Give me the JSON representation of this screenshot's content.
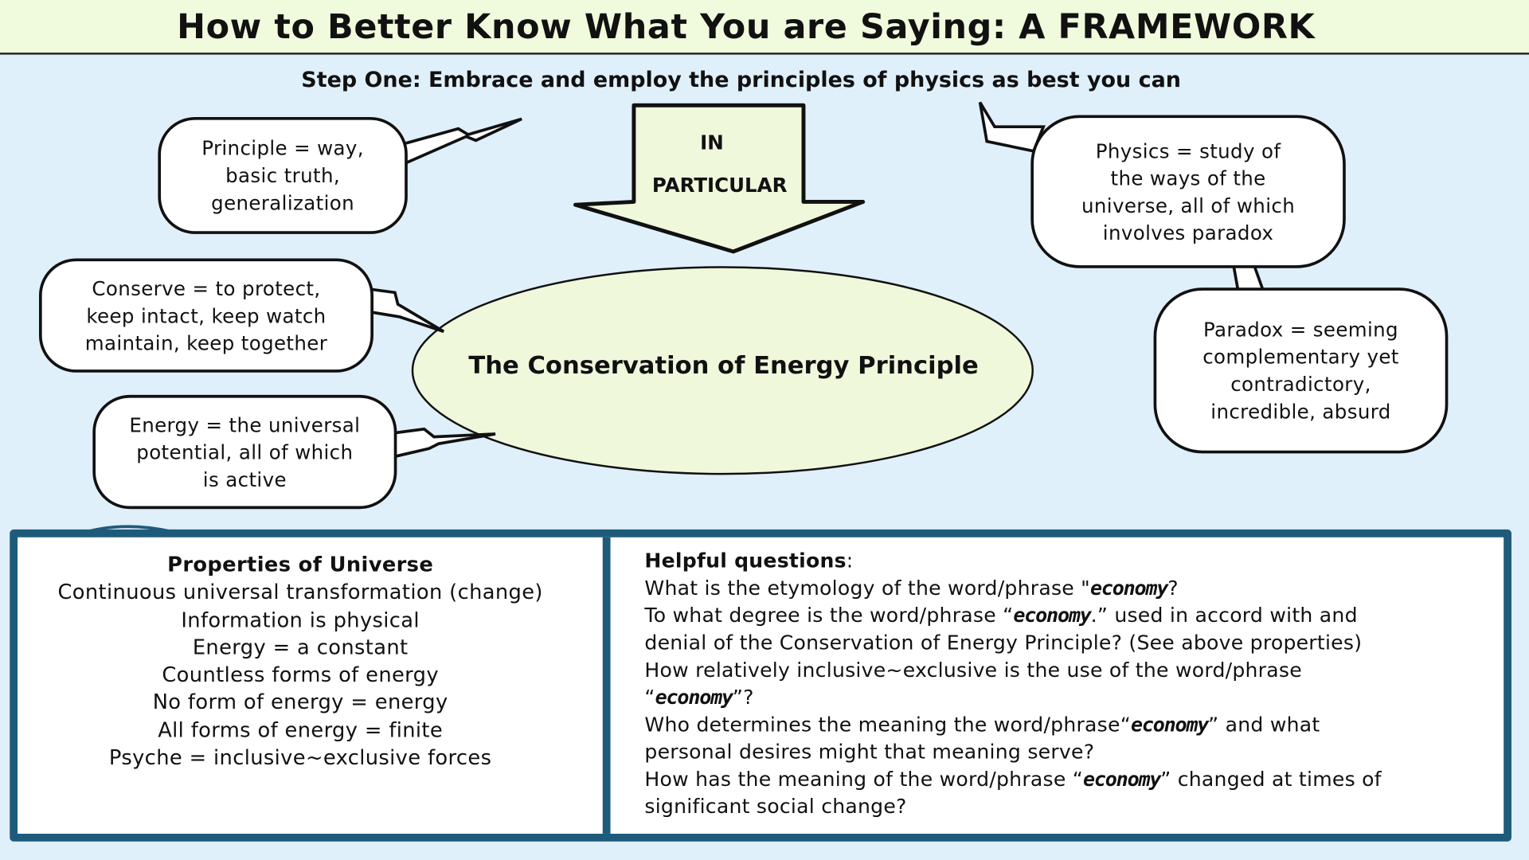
{
  "title": "How to Better Know What You are Saying: A FRAMEWORK",
  "step_one": "Step One: Embrace and employ the principles of physics as best you can",
  "arrow": {
    "line1": "IN",
    "line2": "PARTICULAR"
  },
  "center": "The Conservation of Energy Principle",
  "bubbles": {
    "principle": [
      "Principle = way,",
      "basic truth,",
      "generalization"
    ],
    "conserve": [
      "Conserve = to protect,",
      "keep intact, keep watch",
      "maintain, keep together"
    ],
    "energy": [
      "Energy = the universal",
      "potential, all of which",
      "is active"
    ],
    "physics": [
      "Physics = study of",
      "the ways of the",
      "universe, all of which",
      "involves paradox"
    ],
    "paradox": [
      "Paradox = seeming",
      "complementary yet",
      "contradictory,",
      "incredible, absurd"
    ]
  },
  "properties": {
    "heading": "Properties of Universe",
    "items": [
      "Continuous universal transformation (change)",
      "Information is physical",
      "Energy = a constant",
      "Countless forms of energy",
      "No form of energy = energy",
      "All forms of energy = finite",
      "Psyche = inclusive~exclusive forces"
    ]
  },
  "questions": {
    "heading": "Helpful questions",
    "heading_suffix": ":",
    "word": "economy",
    "q1": {
      "a": "What is the etymology of the word/phrase \"",
      "b": "?"
    },
    "q2": {
      "a": "To what degree is the word/phrase “",
      "b": ".” used in accord with and",
      "c": "denial of the Conservation of Energy Principle? (See above properties)"
    },
    "q3": {
      "a": "How relatively inclusive~exclusive is the use of the word/phrase",
      "b": "“",
      "c": "”?"
    },
    "q4": {
      "a": "Who determines the meaning the word/phrase“",
      "b": "” and what",
      "c": "personal desires might that meaning serve?"
    },
    "q5": {
      "a": "How has the meaning of the word/phrase “",
      "b": "” changed at times of",
      "c": "significant social change?"
    }
  },
  "colors": {
    "banner": "#f0fadc",
    "background": "#dff0fb",
    "ellipse": "#f0f8dc",
    "frame": "#1e5b7b"
  }
}
